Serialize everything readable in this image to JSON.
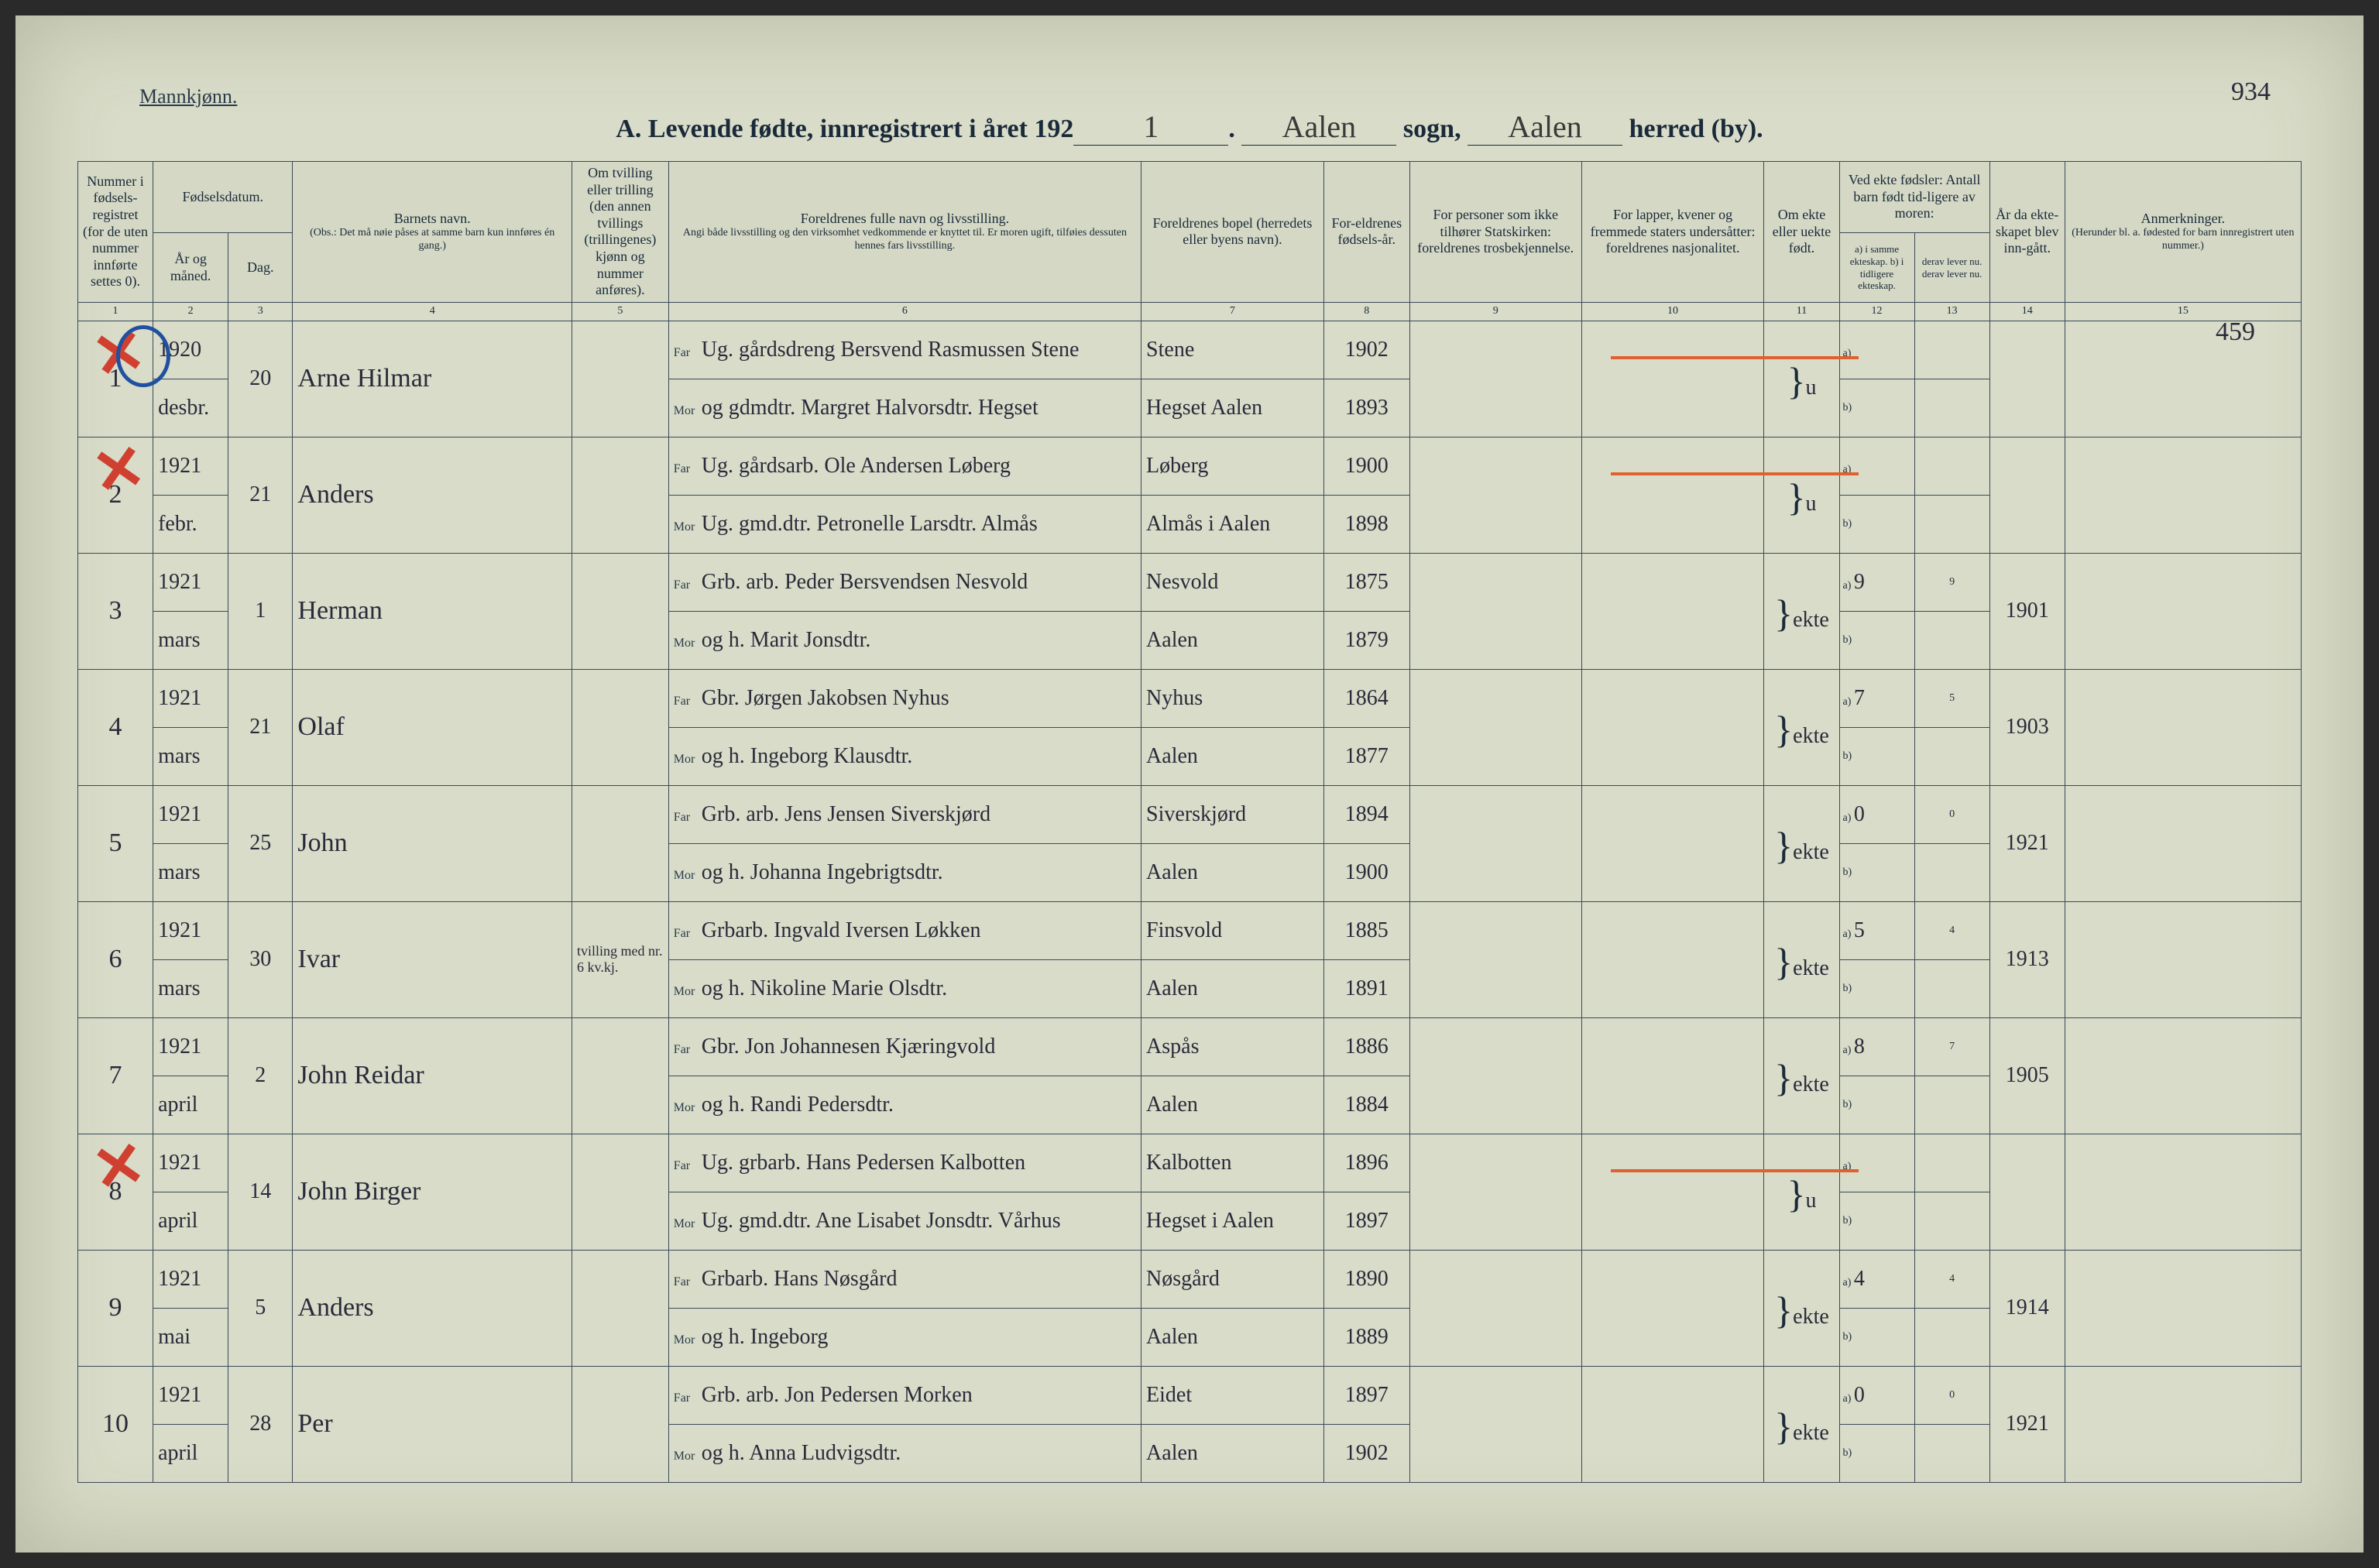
{
  "header": {
    "genderLabel": "Mannkjønn.",
    "titlePrefix": "A.  Levende fødte, innregistrert i året 192",
    "yearDigit": "1",
    "period": ".",
    "sogn": "Aalen",
    "sognLabel": "sogn,",
    "herred": "Aalen",
    "herredLabel": "herred (by).",
    "pageNumber": "934",
    "anmerkningNum": "459"
  },
  "columns": {
    "c1": "Nummer i fødsels-registret (for de uten nummer innførte settes 0).",
    "c2_header": "Fødselsdatum.",
    "c2": "År og måned.",
    "c3": "Dag.",
    "c4": "Barnets navn.",
    "c4_sub": "(Obs.: Det må nøie påses at samme barn kun innføres én gang.)",
    "c5": "Om tvilling eller trilling (den annen tvillings (trillingenes) kjønn og nummer anføres).",
    "c6": "Foreldrenes fulle navn og livsstilling.",
    "c6_sub": "Angi både livsstilling og den virksomhet vedkommende er knyttet til. Er moren ugift, tilføies dessuten hennes fars livsstilling.",
    "c7": "Foreldrenes bopel (herredets eller byens navn).",
    "c8": "For-eldrenes fødsels-år.",
    "c9": "For personer som ikke tilhører Statskirken: foreldrenes trosbekjennelse.",
    "c10": "For lapper, kvener og fremmede staters undersåtter: foreldrenes nasjonalitet.",
    "c11": "Om ekte eller uekte født.",
    "c12_header": "Ved ekte fødsler: Antall barn født tid-ligere av moren:",
    "c12": "a) i samme ekteskap. b) i tidligere ekteskap.",
    "c13": "derav lever nu. derav lever nu.",
    "c14": "År da ekte-skapet blev inn-gått.",
    "c15": "Anmerkninger.",
    "c15_sub": "(Herunder bl. a. fødested for barn innregistrert uten nummer.)"
  },
  "colNums": [
    "1",
    "2",
    "3",
    "4",
    "5",
    "6",
    "7",
    "8",
    "9",
    "10",
    "11",
    "12",
    "13",
    "14",
    "15"
  ],
  "rows": [
    {
      "num": "1",
      "yr": "1920",
      "mo": "desbr.",
      "day": "20",
      "name": "Arne Hilmar",
      "twin": "",
      "far": "Ug. gårdsdreng Bersvend Rasmussen Stene",
      "mor": "og gdmdtr. Margret Halvorsdtr. Hegset",
      "bopelF": "Stene",
      "bopelM": "Hegset Aalen",
      "farYr": "1902",
      "morYr": "1893",
      "ekte": "u",
      "a": "",
      "aLev": "",
      "marYr": "",
      "strike": true,
      "xmark": true,
      "circle": true
    },
    {
      "num": "2",
      "yr": "1921",
      "mo": "febr.",
      "day": "21",
      "name": "Anders",
      "twin": "",
      "far": "Ug. gårdsarb. Ole Andersen Løberg",
      "mor": "Ug. gmd.dtr. Petronelle Larsdtr. Almås",
      "bopelF": "Løberg",
      "bopelM": "Almås i Aalen",
      "farYr": "1900",
      "morYr": "1898",
      "ekte": "u",
      "a": "",
      "aLev": "",
      "marYr": "",
      "strike": true,
      "xmark": true
    },
    {
      "num": "3",
      "yr": "1921",
      "mo": "mars",
      "day": "1",
      "name": "Herman",
      "twin": "",
      "far": "Grb. arb. Peder Bersvendsen Nesvold",
      "mor": "og h. Marit Jonsdtr.",
      "bopelF": "Nesvold",
      "bopelM": "Aalen",
      "farYr": "1875",
      "morYr": "1879",
      "ekte": "ekte",
      "a": "9",
      "aLev": "9",
      "marYr": "1901"
    },
    {
      "num": "4",
      "yr": "1921",
      "mo": "mars",
      "day": "21",
      "name": "Olaf",
      "twin": "",
      "far": "Gbr. Jørgen Jakobsen Nyhus",
      "mor": "og h. Ingeborg Klausdtr.",
      "bopelF": "Nyhus",
      "bopelM": "Aalen",
      "farYr": "1864",
      "morYr": "1877",
      "ekte": "ekte",
      "a": "7",
      "aLev": "5",
      "marYr": "1903"
    },
    {
      "num": "5",
      "yr": "1921",
      "mo": "mars",
      "day": "25",
      "name": "John",
      "twin": "",
      "far": "Grb. arb. Jens Jensen Siverskjørd",
      "mor": "og h. Johanna Ingebrigtsdtr.",
      "bopelF": "Siverskjørd",
      "bopelM": "Aalen",
      "farYr": "1894",
      "morYr": "1900",
      "ekte": "ekte",
      "a": "0",
      "aLev": "0",
      "marYr": "1921"
    },
    {
      "num": "6",
      "yr": "1921",
      "mo": "mars",
      "day": "30",
      "name": "Ivar",
      "twin": "tvilling med nr. 6 kv.kj.",
      "far": "Grbarb. Ingvald Iversen Løkken",
      "mor": "og h. Nikoline Marie Olsdtr.",
      "bopelF": "Finsvold",
      "bopelM": "Aalen",
      "farYr": "1885",
      "morYr": "1891",
      "ekte": "ekte",
      "a": "5",
      "aLev": "4",
      "marYr": "1913"
    },
    {
      "num": "7",
      "yr": "1921",
      "mo": "april",
      "day": "2",
      "name": "John Reidar",
      "twin": "",
      "far": "Gbr. Jon Johannesen Kjæringvold",
      "mor": "og h. Randi Pedersdtr.",
      "bopelF": "Aspås",
      "bopelM": "Aalen",
      "farYr": "1886",
      "morYr": "1884",
      "ekte": "ekte",
      "a": "8",
      "aLev": "7",
      "marYr": "1905"
    },
    {
      "num": "8",
      "yr": "1921",
      "mo": "april",
      "day": "14",
      "name": "John Birger",
      "twin": "",
      "far": "Ug. grbarb. Hans Pedersen Kalbotten",
      "mor": "Ug. gmd.dtr. Ane Lisabet Jonsdtr. Vårhus",
      "bopelF": "Kalbotten",
      "bopelM": "Hegset i Aalen",
      "farYr": "1896",
      "morYr": "1897",
      "ekte": "u",
      "a": "",
      "aLev": "",
      "marYr": "",
      "strike": true,
      "xmark": true
    },
    {
      "num": "9",
      "yr": "1921",
      "mo": "mai",
      "day": "5",
      "name": "Anders",
      "twin": "",
      "far": "Grbarb. Hans Nøsgård",
      "mor": "og h. Ingeborg",
      "bopelF": "Nøsgård",
      "bopelM": "Aalen",
      "farYr": "1890",
      "morYr": "1889",
      "ekte": "ekte",
      "a": "4",
      "aLev": "4",
      "marYr": "1914"
    },
    {
      "num": "10",
      "yr": "1921",
      "mo": "april",
      "day": "28",
      "name": "Per",
      "twin": "",
      "far": "Grb. arb. Jon Pedersen Morken",
      "mor": "og h. Anna Ludvigsdtr.",
      "bopelF": "Eidet",
      "bopelM": "Aalen",
      "farYr": "1897",
      "morYr": "1902",
      "ekte": "ekte",
      "a": "0",
      "aLev": "0",
      "marYr": "1921"
    }
  ],
  "labels": {
    "far": "Far",
    "mor": "Mor",
    "a": "a)",
    "b": "b)"
  },
  "style": {
    "pageBg": "#d8dcc8",
    "borderColor": "#3a4a5a",
    "textColor": "#1a2a3a",
    "cursiveColor": "#2a2a3a",
    "xMarkColor": "#d04030",
    "circleColor": "#2050a0",
    "strikeColor": "#e06030"
  }
}
